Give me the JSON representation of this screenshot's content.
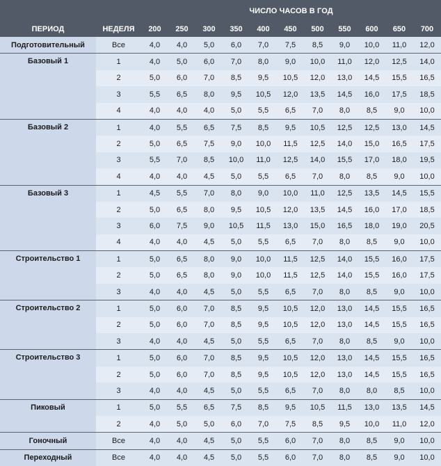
{
  "header": {
    "super_label": "ЧИСЛО ЧАСОВ В ГОД",
    "period_label": "ПЕРИОД",
    "week_label": "НЕДЕЛЯ",
    "hours": [
      "200",
      "250",
      "300",
      "350",
      "400",
      "450",
      "500",
      "550",
      "600",
      "650",
      "700"
    ]
  },
  "rows": [
    {
      "period": "Подготовительный",
      "week": "Все",
      "values": [
        "4,0",
        "4,0",
        "5,0",
        "6,0",
        "7,0",
        "7,5",
        "8,5",
        "9,0",
        "10,0",
        "11,0",
        "12,0"
      ]
    },
    {
      "period": "Базовый 1",
      "week": "1",
      "values": [
        "4,0",
        "5,0",
        "6,0",
        "7,0",
        "8,0",
        "9,0",
        "10,0",
        "11,0",
        "12,0",
        "12,5",
        "14,0"
      ]
    },
    {
      "period": "",
      "week": "2",
      "values": [
        "5,0",
        "6,0",
        "7,0",
        "8,5",
        "9,5",
        "10,5",
        "12,0",
        "13,0",
        "14,5",
        "15,5",
        "16,5"
      ]
    },
    {
      "period": "",
      "week": "3",
      "values": [
        "5,5",
        "6,5",
        "8,0",
        "9,5",
        "10,5",
        "12,0",
        "13,5",
        "14,5",
        "16,0",
        "17,5",
        "18,5"
      ]
    },
    {
      "period": "",
      "week": "4",
      "values": [
        "4,0",
        "4,0",
        "4,0",
        "5,0",
        "5,5",
        "6,5",
        "7,0",
        "8,0",
        "8,5",
        "9,0",
        "10,0"
      ]
    },
    {
      "period": "Базовый 2",
      "week": "1",
      "values": [
        "4,0",
        "5,5",
        "6,5",
        "7,5",
        "8,5",
        "9,5",
        "10,5",
        "12,5",
        "12,5",
        "13,0",
        "14,5"
      ]
    },
    {
      "period": "",
      "week": "2",
      "values": [
        "5,0",
        "6,5",
        "7,5",
        "9,0",
        "10,0",
        "11,5",
        "12,5",
        "14,0",
        "15,0",
        "16,5",
        "17,5"
      ]
    },
    {
      "period": "",
      "week": "3",
      "values": [
        "5,5",
        "7,0",
        "8,5",
        "10,0",
        "11,0",
        "12,5",
        "14,0",
        "15,5",
        "17,0",
        "18,0",
        "19,5"
      ]
    },
    {
      "period": "",
      "week": "4",
      "values": [
        "4,0",
        "4,0",
        "4,5",
        "5,0",
        "5,5",
        "6,5",
        "7,0",
        "8,0",
        "8,5",
        "9,0",
        "10,0"
      ]
    },
    {
      "period": "Базовый 3",
      "week": "1",
      "values": [
        "4,5",
        "5,5",
        "7,0",
        "8,0",
        "9,0",
        "10,0",
        "11,0",
        "12,5",
        "13,5",
        "14,5",
        "15,5"
      ]
    },
    {
      "period": "",
      "week": "2",
      "values": [
        "5,0",
        "6,5",
        "8,0",
        "9,5",
        "10,5",
        "12,0",
        "13,5",
        "14,5",
        "16,0",
        "17,0",
        "18,5"
      ]
    },
    {
      "period": "",
      "week": "3",
      "values": [
        "6,0",
        "7,5",
        "9,0",
        "10,5",
        "11,5",
        "13,0",
        "15,0",
        "16,5",
        "18,0",
        "19,0",
        "20,5"
      ]
    },
    {
      "period": "",
      "week": "4",
      "values": [
        "4,0",
        "4,0",
        "4,5",
        "5,0",
        "5,5",
        "6,5",
        "7,0",
        "8,0",
        "8,5",
        "9,0",
        "10,0"
      ]
    },
    {
      "period": "Строительство 1",
      "week": "1",
      "values": [
        "5,0",
        "6,5",
        "8,0",
        "9,0",
        "10,0",
        "11,5",
        "12,5",
        "14,0",
        "15,5",
        "16,0",
        "17,5"
      ]
    },
    {
      "period": "",
      "week": "2",
      "values": [
        "5,0",
        "6,5",
        "8,0",
        "9,0",
        "10,0",
        "11,5",
        "12,5",
        "14,0",
        "15,5",
        "16,0",
        "17,5"
      ]
    },
    {
      "period": "",
      "week": "3",
      "values": [
        "4,0",
        "4,0",
        "4,5",
        "5,0",
        "5,5",
        "6,5",
        "7,0",
        "8,0",
        "8,5",
        "9,0",
        "10,0"
      ]
    },
    {
      "period": "Строительство 2",
      "week": "1",
      "values": [
        "5,0",
        "6,0",
        "7,0",
        "8,5",
        "9,5",
        "10,5",
        "12,0",
        "13,0",
        "14,5",
        "15,5",
        "16,5"
      ]
    },
    {
      "period": "",
      "week": "2",
      "values": [
        "5,0",
        "6,0",
        "7,0",
        "8,5",
        "9,5",
        "10,5",
        "12,0",
        "13,0",
        "14,5",
        "15,5",
        "16,5"
      ]
    },
    {
      "period": "",
      "week": "3",
      "values": [
        "4,0",
        "4,0",
        "4,5",
        "5,0",
        "5,5",
        "6,5",
        "7,0",
        "8,0",
        "8,5",
        "9,0",
        "10,0"
      ]
    },
    {
      "period": "Строительство 3",
      "week": "1",
      "values": [
        "5,0",
        "6,0",
        "7,0",
        "8,5",
        "9,5",
        "10,5",
        "12,0",
        "13,0",
        "14,5",
        "15,5",
        "16,5"
      ]
    },
    {
      "period": "",
      "week": "2",
      "values": [
        "5,0",
        "6,0",
        "7,0",
        "8,5",
        "9,5",
        "10,5",
        "12,0",
        "13,0",
        "14,5",
        "15,5",
        "16,5"
      ]
    },
    {
      "period": "",
      "week": "3",
      "values": [
        "4,0",
        "4,0",
        "4,5",
        "5,0",
        "5,5",
        "6,5",
        "7,0",
        "8,0",
        "8,0",
        "8,5",
        "10,0"
      ]
    },
    {
      "period": "Пиковый",
      "week": "1",
      "values": [
        "5,0",
        "5,5",
        "6,5",
        "7,5",
        "8,5",
        "9,5",
        "10,5",
        "11,5",
        "13,0",
        "13,5",
        "14,5"
      ]
    },
    {
      "period": "",
      "week": "2",
      "values": [
        "4,0",
        "5,0",
        "5,0",
        "6,0",
        "7,0",
        "7,5",
        "8,5",
        "9,5",
        "10,0",
        "11,0",
        "12,0"
      ]
    },
    {
      "period": "Гоночный",
      "week": "Все",
      "values": [
        "4,0",
        "4,0",
        "4,5",
        "5,0",
        "5,5",
        "6,0",
        "7,0",
        "8,0",
        "8,5",
        "9,0",
        "10,0"
      ]
    },
    {
      "period": "Переходный",
      "week": "Все",
      "values": [
        "4,0",
        "4,0",
        "4,5",
        "5,0",
        "5,5",
        "6,0",
        "7,0",
        "8,0",
        "8,5",
        "9,0",
        "10,0"
      ]
    }
  ],
  "groups": [
    {
      "period": "Подготовительный",
      "start": 0,
      "span": 1
    },
    {
      "period": "Базовый 1",
      "start": 1,
      "span": 4
    },
    {
      "period": "Базовый 2",
      "start": 5,
      "span": 4
    },
    {
      "period": "Базовый 3",
      "start": 9,
      "span": 4
    },
    {
      "period": "Строительство 1",
      "start": 13,
      "span": 3
    },
    {
      "period": "Строительство 2",
      "start": 16,
      "span": 3
    },
    {
      "period": "Строительство 3",
      "start": 19,
      "span": 3
    },
    {
      "period": "Пиковый",
      "start": 22,
      "span": 2
    },
    {
      "period": "Гоночный",
      "start": 24,
      "span": 1
    },
    {
      "period": "Переходный",
      "start": 25,
      "span": 1
    }
  ]
}
